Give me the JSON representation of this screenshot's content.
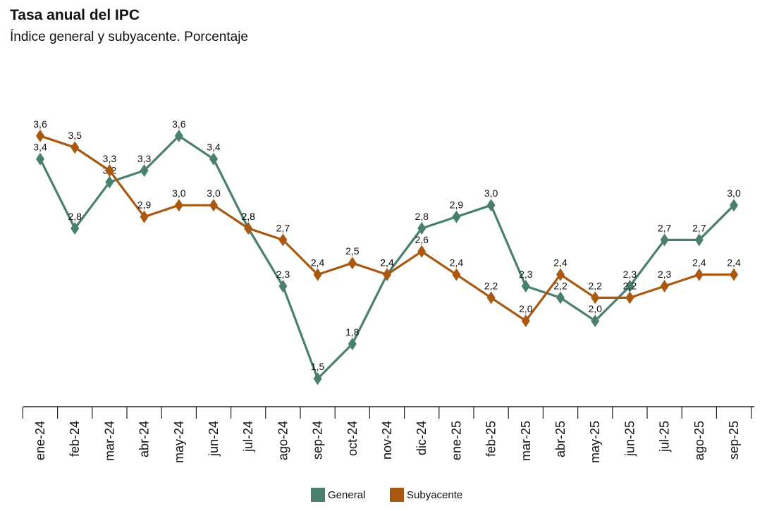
{
  "header": {
    "title": "Tasa anual del IPC",
    "subtitle": "Índice general y subyacente. Porcentaje"
  },
  "colors": {
    "general": "#4a7f6f",
    "subyacente": "#a8590f",
    "axis": "#222222"
  },
  "chart_data": {
    "type": "line",
    "title": "Tasa anual del IPC",
    "subtitle": "Índice general y subyacente. Porcentaje",
    "categories": [
      "ene-24",
      "feb-24",
      "mar-24",
      "abr-24",
      "may-24",
      "jun-24",
      "jul-24",
      "ago-24",
      "sep-24",
      "oct-24",
      "nov-24",
      "dic-24",
      "ene-25",
      "feb-25",
      "mar-25",
      "abr-25",
      "may-25",
      "jun-25",
      "jul-25",
      "ago-25",
      "sep-25"
    ],
    "series": [
      {
        "name": "General",
        "color": "#4a7f6f",
        "values": [
          3.4,
          2.8,
          3.2,
          3.3,
          3.6,
          3.4,
          2.8,
          2.3,
          1.5,
          1.8,
          2.4,
          2.8,
          2.9,
          3.0,
          2.3,
          2.2,
          2.0,
          2.3,
          2.7,
          2.7,
          3.0
        ]
      },
      {
        "name": "Subyacente",
        "color": "#a8590f",
        "values": [
          3.6,
          3.5,
          3.3,
          2.9,
          3.0,
          3.0,
          2.8,
          2.7,
          2.4,
          2.5,
          2.4,
          2.6,
          2.4,
          2.2,
          2.0,
          2.4,
          2.2,
          2.2,
          2.3,
          2.4,
          2.4
        ]
      }
    ],
    "ylim": [
      1.3,
      3.8
    ],
    "grid": false,
    "legend_position": "bottom",
    "marker": "diamond",
    "data_labels": true,
    "decimal_separator": ","
  }
}
